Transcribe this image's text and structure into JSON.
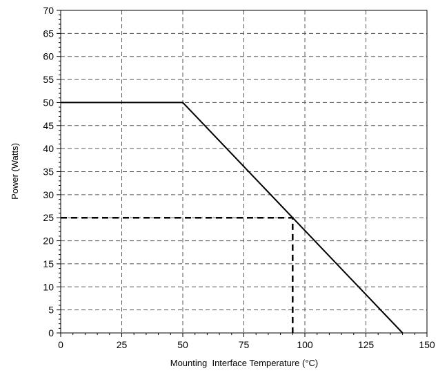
{
  "chart_data": {
    "type": "line",
    "title": "",
    "xlabel": "Mounting  Interface Temperature (°C)",
    "ylabel": "Power (Watts)",
    "xlim": [
      0,
      150
    ],
    "ylim": [
      0,
      70
    ],
    "xticks": [
      0,
      25,
      50,
      75,
      100,
      125,
      150
    ],
    "yticks": [
      0,
      5,
      10,
      15,
      20,
      25,
      30,
      35,
      40,
      45,
      50,
      55,
      60,
      65,
      70
    ],
    "grid": true,
    "series": [
      {
        "style": "solid",
        "x": [
          0,
          50,
          140
        ],
        "y": [
          50,
          50,
          0
        ]
      }
    ],
    "annotations": [
      {
        "style": "dashed",
        "x": [
          0,
          95,
          95
        ],
        "y": [
          25,
          25,
          0
        ]
      }
    ]
  },
  "colors": {
    "line": "#000000",
    "grid": "#555555",
    "background": "#ffffff"
  }
}
